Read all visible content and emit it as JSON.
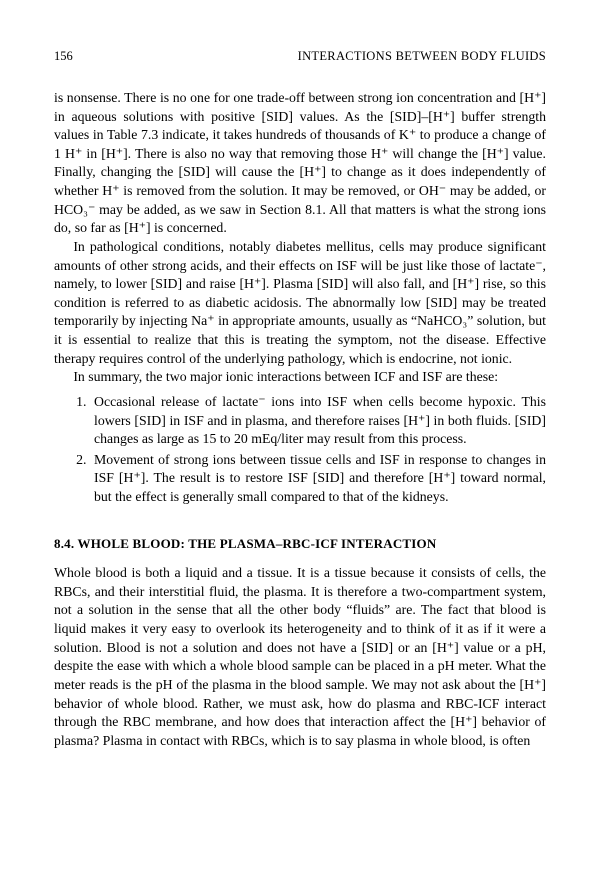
{
  "header": {
    "page_number": "156",
    "running_title": "INTERACTIONS BETWEEN BODY FLUIDS"
  },
  "para1": "is nonsense. There is no one for one trade-off between strong ion concentration and [H⁺] in aqueous solutions with positive [SID] values. As the [SID]–[H⁺] buffer strength values in Table 7.3 indicate, it takes hundreds of thousands of K⁺ to produce a change of 1 H⁺ in [H⁺]. There is also no way that removing those H⁺ will change the [H⁺] value. Finally, changing the [SID] will cause the [H⁺] to change as it does independently of whether H⁺ is removed from the solution. It may be removed, or OH⁻ may be added, or HCO₃⁻ may be added, as we saw in Section 8.1. All that matters is what the strong ions do, so far as [H⁺] is concerned.",
  "para2": "In pathological conditions, notably diabetes mellitus, cells may produce significant amounts of other strong acids, and their effects on ISF will be just like those of lactate⁻, namely, to lower [SID] and raise [H⁺]. Plasma [SID] will also fall, and [H⁺] rise, so this condition is referred to as diabetic acidosis. The abnormally low [SID] may be treated temporarily by injecting Na⁺ in appropriate amounts, usually as “NaHCO₃” solution, but it is essential to realize that this is treating the symptom, not the disease. Effective therapy requires control of the underlying pathology, which is endocrine, not ionic.",
  "para3": "In summary, the two major ionic interactions between ICF and ISF are these:",
  "list": {
    "item1": "Occasional release of lactate⁻ ions into ISF when cells become hypoxic. This lowers [SID] in ISF and in plasma, and therefore raises [H⁺] in both fluids. [SID] changes as large as 15 to 20 mEq/liter may result from this process.",
    "item2": "Movement of strong ions between tissue cells and ISF in response to changes in ISF [H⁺]. The result is to restore ISF [SID] and therefore [H⁺] toward normal, but the effect is generally small compared to that of the kidneys."
  },
  "section_heading": "8.4. WHOLE BLOOD: THE PLASMA–RBC-ICF INTERACTION",
  "para4": "Whole blood is both a liquid and a tissue. It is a tissue because it consists of cells, the RBCs, and their interstitial fluid, the plasma. It is therefore a two-compartment system, not a solution in the sense that all the other body “fluids” are. The fact that blood is liquid makes it very easy to overlook its heterogeneity and to think of it as if it were a solution. Blood is not a solution and does not have a [SID] or an [H⁺] value or a pH, despite the ease with which a whole blood sample can be placed in a pH meter. What the meter reads is the pH of the plasma in the blood sample. We may not ask about the [H⁺] behavior of whole blood. Rather, we must ask, how do plasma and RBC-ICF interact through the RBC membrane, and how does that interaction affect the [H⁺] behavior of plasma? Plasma in contact with RBCs, which is to say plasma in whole blood, is often"
}
